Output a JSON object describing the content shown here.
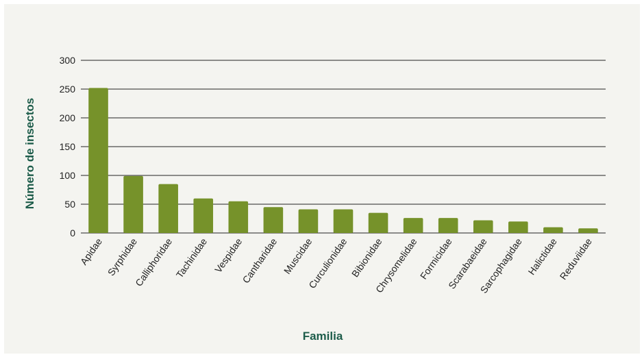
{
  "chart_data": {
    "type": "bar",
    "title": "",
    "xlabel": "Familia",
    "ylabel": "Número de insectos",
    "ylim": [
      0,
      300
    ],
    "yticks": [
      0,
      50,
      100,
      150,
      200,
      250,
      300
    ],
    "grid": true,
    "legend": "none",
    "categories": [
      "Apidae",
      "Syrphidae",
      "Calliphoridae",
      "Tachinidae",
      "Vespidae",
      "Cantharidae",
      "Muscidae",
      "Curculionidae",
      "Bibionidae",
      "Chrysomelidae",
      "Formicidae",
      "Scarabaeidae",
      "Sarcophagidae",
      "Halictidae",
      "Reduviidae"
    ],
    "series": [
      {
        "values": [
          252,
          99,
          85,
          60,
          55,
          45,
          41,
          41,
          35,
          26,
          26,
          22,
          20,
          10,
          8
        ]
      }
    ]
  },
  "colors": {
    "bar": "#76922a",
    "axis_title": "#1d5c4a",
    "panel_background": "#f4f4f0",
    "gridline": "#222222"
  }
}
